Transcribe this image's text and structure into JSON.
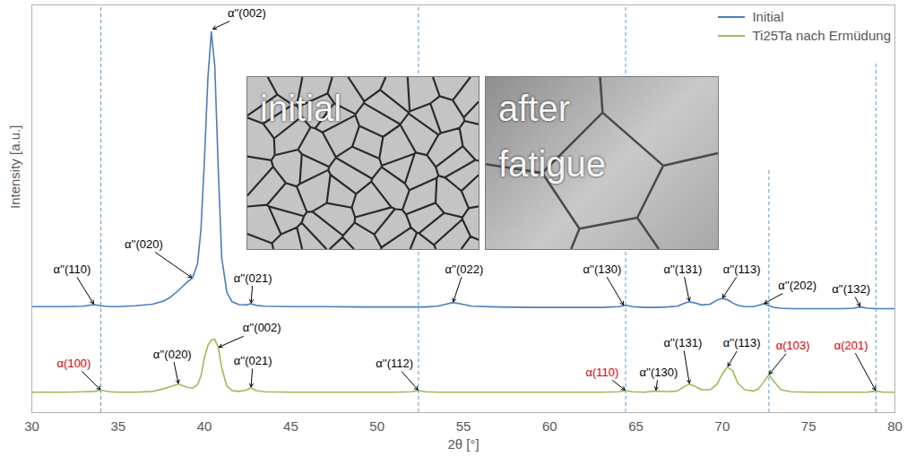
{
  "chart_data": {
    "type": "line",
    "xlabel": "2θ [°]",
    "ylabel": "Intensity [a.u.]",
    "xlim": [
      30,
      80
    ],
    "xticks": [
      30,
      35,
      40,
      45,
      50,
      55,
      60,
      65,
      70,
      75,
      80
    ],
    "ylim": [
      0,
      100
    ],
    "tick_labels": "x",
    "grid": false,
    "legend": "top-right",
    "x": [
      30,
      31,
      32,
      33,
      33.6,
      34.0,
      34.5,
      35,
      36,
      37,
      37.6,
      38.0,
      38.5,
      39.0,
      39.3,
      39.6,
      39.8,
      40.0,
      40.2,
      40.4,
      40.6,
      40.8,
      41.0,
      41.3,
      41.6,
      42.0,
      42.4,
      42.7,
      43.0,
      43.5,
      45,
      47,
      49,
      51,
      52.0,
      52.4,
      52.8,
      53.5,
      54.0,
      54.4,
      54.8,
      55.5,
      57,
      59,
      61,
      63,
      64.0,
      64.4,
      64.8,
      65.5,
      66.15,
      66.8,
      67.4,
      67.8,
      68.1,
      68.4,
      68.8,
      69.3,
      69.7,
      70.0,
      70.3,
      70.6,
      70.9,
      71.3,
      71.8,
      72.1,
      72.4,
      72.7,
      73.0,
      73.4,
      74.0,
      75,
      76,
      77,
      77.6,
      78.0,
      78.4,
      78.9,
      79.3,
      80
    ],
    "series": [
      {
        "name": "Initial",
        "color": "#4a7ebb",
        "values": [
          26.0,
          26.0,
          26.0,
          26.1,
          26.5,
          26.2,
          26.0,
          26.0,
          26.2,
          26.6,
          27.3,
          28.2,
          30.0,
          32.0,
          33.0,
          36.5,
          45,
          62,
          82,
          93.4,
          85,
          60,
          38,
          29.5,
          27.2,
          26.5,
          26.4,
          26.7,
          26.3,
          26.1,
          26.0,
          26.0,
          25.9,
          25.9,
          25.9,
          25.9,
          25.9,
          26.1,
          26.6,
          27.0,
          26.7,
          26.1,
          25.9,
          25.8,
          25.8,
          25.8,
          26.0,
          26.3,
          26.0,
          25.8,
          25.8,
          25.9,
          26.1,
          26.8,
          27.2,
          26.9,
          26.4,
          26.6,
          27.6,
          28.0,
          27.7,
          26.9,
          26.3,
          26.0,
          26.0,
          26.3,
          26.7,
          26.2,
          25.8,
          25.6,
          25.5,
          25.5,
          25.5,
          25.5,
          25.6,
          25.9,
          25.6,
          25.5,
          25.5,
          25.5
        ]
      },
      {
        "name": "Ti25Ta nach Ermüdung",
        "color": "#9bbb59",
        "values": [
          5.0,
          5.0,
          5.0,
          5.1,
          5.2,
          5.5,
          5.1,
          5.0,
          5.0,
          5.2,
          5.8,
          6.3,
          7.0,
          6.2,
          6.0,
          6.8,
          9.0,
          13.5,
          16.5,
          17.8,
          18.0,
          16.0,
          11.0,
          6.5,
          5.4,
          5.2,
          5.5,
          6.1,
          5.4,
          5.1,
          5.0,
          5.0,
          5.0,
          5.0,
          5.1,
          5.4,
          5.1,
          5.0,
          5.0,
          5.0,
          5.0,
          5.0,
          5.0,
          5.0,
          5.0,
          5.0,
          5.1,
          5.4,
          5.1,
          5.0,
          5.3,
          5.1,
          5.3,
          6.4,
          7.0,
          6.5,
          5.6,
          5.6,
          7.0,
          9.5,
          11.2,
          10.3,
          7.2,
          5.6,
          5.3,
          5.8,
          7.5,
          9.3,
          7.6,
          5.6,
          5.1,
          5.0,
          5.0,
          5.0,
          5.0,
          5.0,
          5.0,
          5.3,
          5.0,
          5.0
        ]
      }
    ],
    "reference_lines": [
      {
        "x": 34.0,
        "ymax": 100
      },
      {
        "x": 52.4,
        "ymax": 100
      },
      {
        "x": 64.4,
        "ymax": 100
      },
      {
        "x": 72.7,
        "ymax": 60
      },
      {
        "x": 78.9,
        "ymax": 86
      }
    ],
    "annotations": [
      {
        "text": "α''(110)",
        "x": 33.6,
        "y": 26.5,
        "text_x": 32.33,
        "text_y": 35.2,
        "color": "#000000"
      },
      {
        "text": "α''(020)",
        "x": 39.3,
        "y": 33.0,
        "text_x": 36.48,
        "text_y": 41.3,
        "color": "#000000"
      },
      {
        "text": "α''(002)",
        "x": 40.45,
        "y": 94.0,
        "text_x": 42.45,
        "text_y": 98.0,
        "color": "#000000"
      },
      {
        "text": "α''(021)",
        "x": 42.7,
        "y": 26.7,
        "text_x": 42.81,
        "text_y": 33.0,
        "color": "#000000"
      },
      {
        "text": "α''(022)",
        "x": 54.4,
        "y": 27.0,
        "text_x": 55.05,
        "text_y": 35.2,
        "color": "#000000"
      },
      {
        "text": "α''(130)",
        "x": 64.3,
        "y": 26.2,
        "text_x": 63.04,
        "text_y": 35.2,
        "color": "#000000"
      },
      {
        "text": "α''(131)",
        "x": 68.1,
        "y": 27.2,
        "text_x": 67.71,
        "text_y": 35.2,
        "color": "#000000"
      },
      {
        "text": "α''(113)",
        "x": 70.0,
        "y": 28.0,
        "text_x": 71.13,
        "text_y": 35.2,
        "color": "#000000"
      },
      {
        "text": "α''(202)",
        "x": 72.4,
        "y": 26.7,
        "text_x": 74.35,
        "text_y": 31.2,
        "color": "#000000"
      },
      {
        "text": "α''(132)",
        "x": 78.0,
        "y": 25.9,
        "text_x": 77.46,
        "text_y": 30.3,
        "color": "#000000"
      },
      {
        "text": "α(100)",
        "x": 34.0,
        "y": 5.5,
        "text_x": 32.44,
        "text_y": 12.1,
        "color": "#e00000"
      },
      {
        "text": "α''(020)",
        "x": 38.5,
        "y": 7.0,
        "text_x": 38.14,
        "text_y": 14.3,
        "color": "#000000"
      },
      {
        "text": "α''(002)",
        "x": 40.8,
        "y": 16.0,
        "text_x": 43.33,
        "text_y": 20.7,
        "color": "#000000"
      },
      {
        "text": "α''(021)",
        "x": 42.7,
        "y": 6.1,
        "text_x": 42.81,
        "text_y": 12.7,
        "color": "#000000"
      },
      {
        "text": "α''(112)",
        "x": 52.4,
        "y": 5.4,
        "text_x": 51.01,
        "text_y": 12.1,
        "color": "#000000"
      },
      {
        "text": "α(110)",
        "x": 64.4,
        "y": 5.4,
        "text_x": 63.04,
        "text_y": 9.9,
        "color": "#e00000"
      },
      {
        "text": "α''(130)",
        "x": 66.15,
        "y": 5.3,
        "text_x": 66.31,
        "text_y": 9.9,
        "color": "#000000"
      },
      {
        "text": "α''(131)",
        "x": 68.1,
        "y": 7.0,
        "text_x": 67.71,
        "text_y": 17.1,
        "color": "#000000"
      },
      {
        "text": "α''(113)",
        "x": 70.3,
        "y": 11.2,
        "text_x": 71.13,
        "text_y": 17.1,
        "color": "#000000"
      },
      {
        "text": "α(103)",
        "x": 72.7,
        "y": 9.3,
        "text_x": 74.09,
        "text_y": 16.5,
        "color": "#e00000"
      },
      {
        "text": "α(201)",
        "x": 78.9,
        "y": 5.3,
        "text_x": 77.46,
        "text_y": 16.5,
        "color": "#e00000"
      }
    ],
    "insets": [
      {
        "label": "initial"
      },
      {
        "label": "after fatigue"
      }
    ]
  }
}
